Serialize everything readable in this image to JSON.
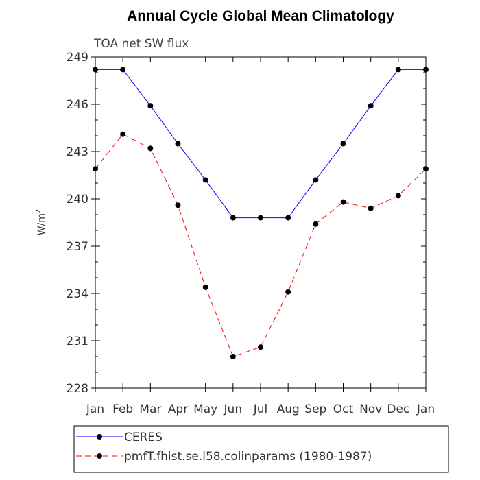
{
  "chart_data": {
    "type": "line",
    "title": "Annual Cycle Global Mean Climatology",
    "subtitle": "TOA net SW flux",
    "xlabel": "",
    "ylabel": "W/m",
    "ylabel_superscript": "2",
    "categories": [
      "Jan",
      "Feb",
      "Mar",
      "Apr",
      "May",
      "Jun",
      "Jul",
      "Aug",
      "Sep",
      "Oct",
      "Nov",
      "Dec",
      "Jan"
    ],
    "yticks": [
      228,
      231,
      234,
      237,
      240,
      243,
      246,
      249
    ],
    "ylim": [
      228,
      249
    ],
    "series": [
      {
        "name": "CERES",
        "color": "#0000ff",
        "dash": "solid",
        "values": [
          248.2,
          248.2,
          245.9,
          243.5,
          241.2,
          238.8,
          238.8,
          238.8,
          241.2,
          243.5,
          245.9,
          248.2,
          248.2
        ]
      },
      {
        "name": "pmfT.fhist.se.l58.colinparams (1980-1987)",
        "color": "#ff0000",
        "dash": "dashed",
        "values": [
          241.9,
          244.1,
          243.2,
          239.6,
          234.4,
          230.0,
          230.6,
          234.1,
          238.4,
          239.8,
          239.4,
          240.2,
          241.9
        ]
      }
    ],
    "grid": false,
    "legend_position": "bottom"
  }
}
